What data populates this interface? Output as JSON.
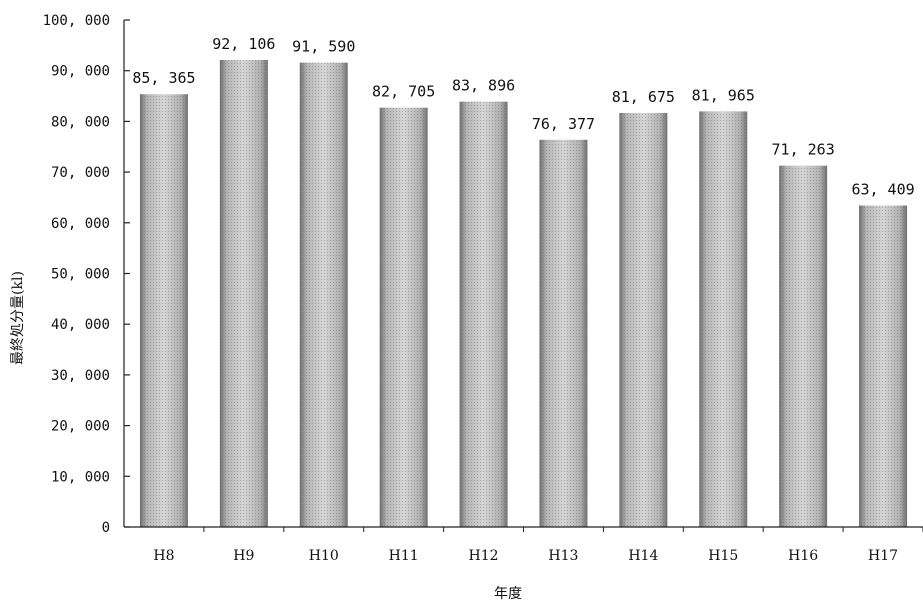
{
  "chart_data": {
    "type": "bar",
    "title": "",
    "xlabel": "年度",
    "ylabel": "最終処分量(kl)",
    "categories": [
      "H8",
      "H9",
      "H10",
      "H11",
      "H12",
      "H13",
      "H14",
      "H15",
      "H16",
      "H17"
    ],
    "values": [
      85365,
      92106,
      91590,
      82705,
      83896,
      76377,
      81675,
      81965,
      71263,
      63409
    ],
    "value_labels": [
      "85, 365",
      "92, 106",
      "91, 590",
      "82, 705",
      "83, 896",
      "76, 377",
      "81, 675",
      "81, 965",
      "71, 263",
      "63, 409"
    ],
    "ylim": [
      0,
      100000
    ],
    "yticks": [
      0,
      10000,
      20000,
      30000,
      40000,
      50000,
      60000,
      70000,
      80000,
      90000,
      100000
    ],
    "ytick_labels": [
      "0",
      "10, 000",
      "20, 000",
      "30, 000",
      "40, 000",
      "50, 000",
      "60, 000",
      "70, 000",
      "80, 000",
      "90, 000",
      "100, 000"
    ],
    "grid": false,
    "legend": "none",
    "bar_color": "#a8a8a8"
  }
}
